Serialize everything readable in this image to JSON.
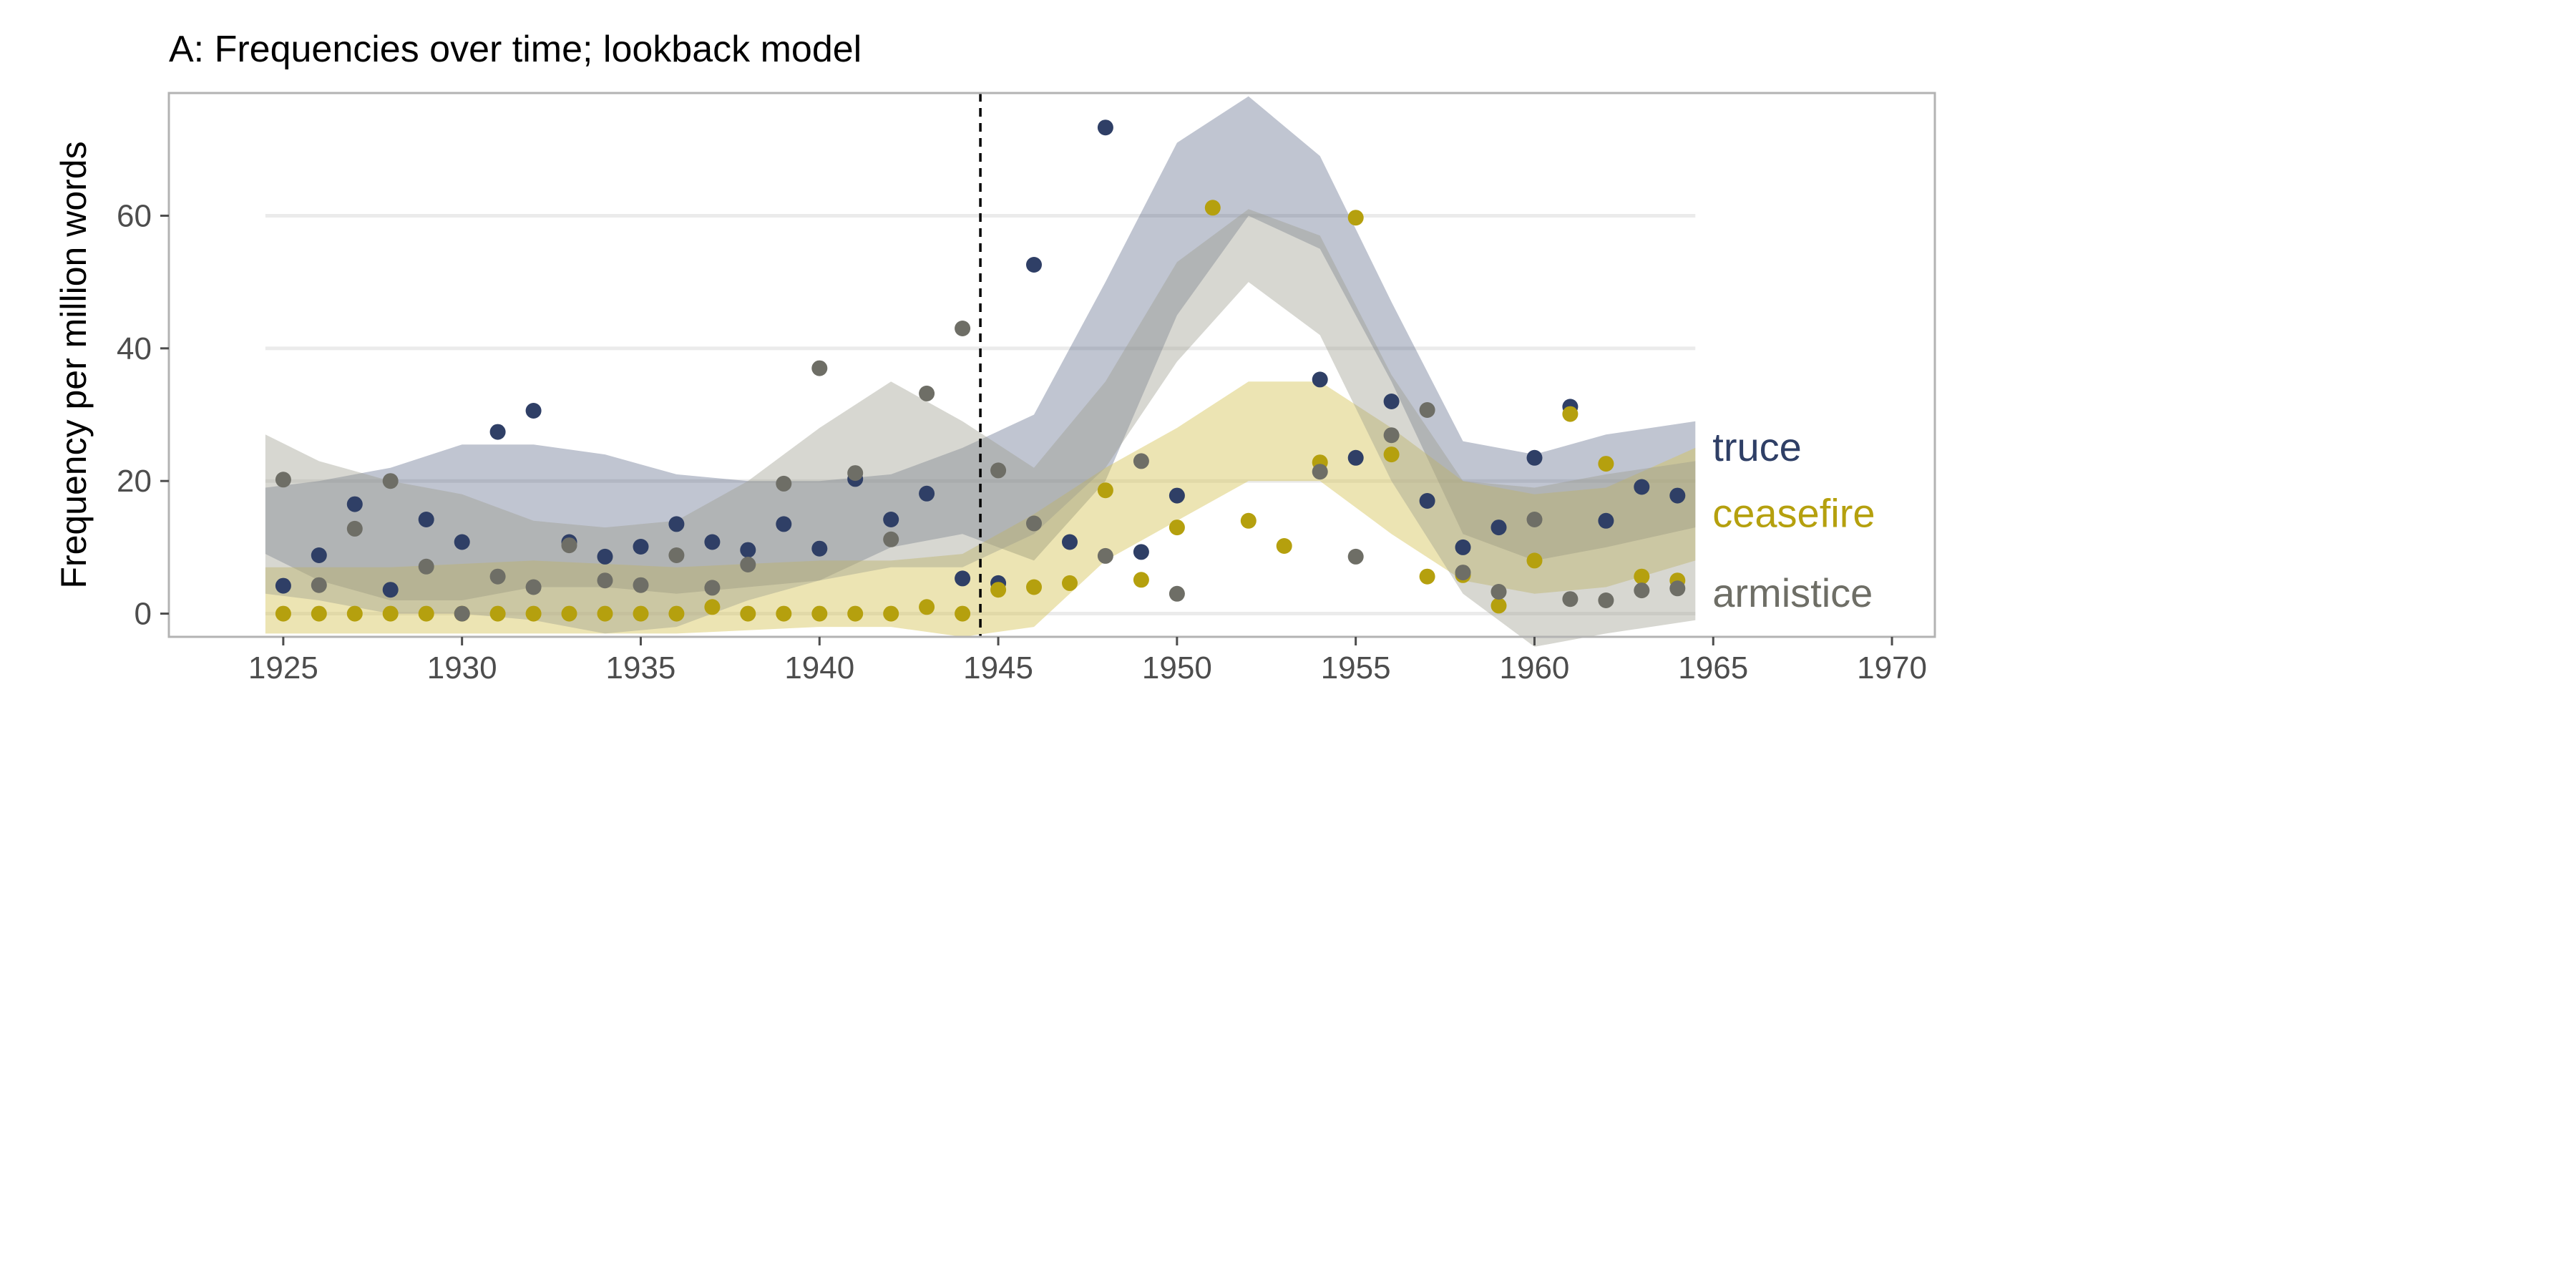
{
  "chart_data": {
    "type": "scatter",
    "title": "A: Frequencies over time; lookback model",
    "xlabel": "",
    "ylabel": "Frequency per million words",
    "xlim": [
      1921.8,
      1971.2
    ],
    "ylim": [
      -3.5,
      78.5
    ],
    "xticks": [
      1925,
      1930,
      1935,
      1940,
      1945,
      1950,
      1955,
      1960,
      1965,
      1970
    ],
    "yticks": [
      0,
      20,
      40,
      60
    ],
    "grid": true,
    "legend": "direct labels at right end of series",
    "cutoff_line_x": 1944.5,
    "series": [
      {
        "name": "truce",
        "color": "#2f3f66",
        "points": [
          [
            1925,
            4.2
          ],
          [
            1926,
            8.8
          ],
          [
            1927,
            16.5
          ],
          [
            1928,
            3.6
          ],
          [
            1929,
            14.2
          ],
          [
            1930,
            10.8
          ],
          [
            1931,
            27.4
          ],
          [
            1932,
            30.6
          ],
          [
            1933,
            10.8
          ],
          [
            1934,
            8.6
          ],
          [
            1935,
            10.1
          ],
          [
            1936,
            13.5
          ],
          [
            1937,
            10.8
          ],
          [
            1938,
            9.6
          ],
          [
            1939,
            13.5
          ],
          [
            1940,
            9.8
          ],
          [
            1941,
            20.3
          ],
          [
            1942,
            14.2
          ],
          [
            1943,
            18.1
          ],
          [
            1944,
            5.3
          ],
          [
            1945,
            4.6
          ],
          [
            1946,
            52.6
          ],
          [
            1947,
            10.8
          ],
          [
            1948,
            73.3
          ],
          [
            1949,
            9.3
          ],
          [
            1950,
            17.8
          ],
          [
            1954,
            35.3
          ],
          [
            1955,
            23.5
          ],
          [
            1956,
            32.0
          ],
          [
            1957,
            17.0
          ],
          [
            1958,
            10.0
          ],
          [
            1959,
            13.0
          ],
          [
            1960,
            23.5
          ],
          [
            1961,
            31.2
          ],
          [
            1962,
            14.0
          ],
          [
            1963,
            19.1
          ],
          [
            1964,
            17.8
          ]
        ],
        "band_x": [
          1924.5,
          1926,
          1928,
          1930,
          1932,
          1934,
          1936,
          1938,
          1940,
          1942,
          1944,
          1946,
          1948,
          1950,
          1952,
          1954,
          1956,
          1958,
          1960,
          1962,
          1964.5
        ],
        "band_low": [
          9,
          5,
          2,
          2,
          4,
          4,
          3,
          4,
          5,
          10,
          12,
          8,
          20,
          45,
          60,
          55,
          35,
          12,
          8,
          10,
          13
        ],
        "band_high": [
          19,
          20,
          22,
          25.5,
          25.5,
          24,
          21,
          20,
          20,
          21,
          25,
          30,
          50,
          71,
          78,
          69,
          47,
          26,
          24,
          27,
          29
        ]
      },
      {
        "name": "ceasefire",
        "color": "#b5a00e",
        "points": [
          [
            1925,
            0
          ],
          [
            1926,
            0
          ],
          [
            1927,
            0
          ],
          [
            1928,
            0
          ],
          [
            1929,
            0
          ],
          [
            1930,
            0
          ],
          [
            1931,
            0
          ],
          [
            1932,
            0
          ],
          [
            1933,
            0
          ],
          [
            1934,
            0
          ],
          [
            1935,
            0
          ],
          [
            1936,
            0
          ],
          [
            1937,
            1.0
          ],
          [
            1938,
            0
          ],
          [
            1939,
            0
          ],
          [
            1940,
            0
          ],
          [
            1941,
            0
          ],
          [
            1942,
            0
          ],
          [
            1943,
            1.0
          ],
          [
            1944,
            0
          ],
          [
            1945,
            3.6
          ],
          [
            1946,
            4.0
          ],
          [
            1947,
            4.6
          ],
          [
            1948,
            18.6
          ],
          [
            1949,
            5.1
          ],
          [
            1950,
            13.0
          ],
          [
            1951,
            61.2
          ],
          [
            1952,
            14.0
          ],
          [
            1953,
            10.2
          ],
          [
            1954,
            22.8
          ],
          [
            1955,
            59.7
          ],
          [
            1956,
            24.0
          ],
          [
            1957,
            5.6
          ],
          [
            1958,
            5.8
          ],
          [
            1959,
            1.2
          ],
          [
            1960,
            8.0
          ],
          [
            1961,
            30.1
          ],
          [
            1962,
            22.6
          ],
          [
            1963,
            5.6
          ],
          [
            1964,
            5.0
          ]
        ],
        "band_x": [
          1924.5,
          1928,
          1932,
          1936,
          1940,
          1942,
          1944,
          1946,
          1948,
          1950,
          1952,
          1954,
          1956,
          1958,
          1960,
          1962,
          1964.5
        ],
        "band_low": [
          -3,
          -3,
          -3,
          -3,
          -2,
          -2,
          -3.5,
          -2,
          8,
          14,
          20,
          20,
          12,
          5,
          3,
          4,
          8
        ],
        "band_high": [
          7,
          7,
          8,
          7,
          8,
          8,
          9,
          15,
          22,
          28,
          35,
          35,
          28,
          20,
          18,
          19,
          25
        ]
      },
      {
        "name": "armistice",
        "color": "#6e6e66",
        "points": [
          [
            1925,
            20.2
          ],
          [
            1926,
            4.3
          ],
          [
            1927,
            12.8
          ],
          [
            1928,
            20.0
          ],
          [
            1929,
            7.1
          ],
          [
            1930,
            0
          ],
          [
            1931,
            5.6
          ],
          [
            1932,
            4.0
          ],
          [
            1933,
            10.3
          ],
          [
            1934,
            5.0
          ],
          [
            1935,
            4.3
          ],
          [
            1936,
            8.8
          ],
          [
            1937,
            3.9
          ],
          [
            1938,
            7.4
          ],
          [
            1939,
            19.6
          ],
          [
            1940,
            37.0
          ],
          [
            1941,
            21.2
          ],
          [
            1942,
            11.2
          ],
          [
            1943,
            33.2
          ],
          [
            1944,
            43.0
          ],
          [
            1945,
            21.6
          ],
          [
            1946,
            13.6
          ],
          [
            1948,
            8.7
          ],
          [
            1949,
            23.0
          ],
          [
            1950,
            3.0
          ],
          [
            1954,
            21.4
          ],
          [
            1955,
            8.6
          ],
          [
            1956,
            26.9
          ],
          [
            1957,
            30.7
          ],
          [
            1958,
            6.2
          ],
          [
            1959,
            3.3
          ],
          [
            1960,
            14.2
          ],
          [
            1961,
            2.2
          ],
          [
            1962,
            2.0
          ],
          [
            1963,
            3.5
          ],
          [
            1964,
            3.8
          ]
        ],
        "band_x": [
          1924.5,
          1926,
          1928,
          1930,
          1932,
          1934,
          1936,
          1938,
          1940,
          1942,
          1944,
          1946,
          1948,
          1950,
          1952,
          1954,
          1956,
          1958,
          1960,
          1962,
          1964.5
        ],
        "band_low": [
          3,
          2,
          0,
          0,
          -1,
          -3,
          -2,
          2,
          5,
          7,
          7,
          12,
          22,
          38,
          50,
          42,
          20,
          3,
          -5,
          -3,
          -1
        ],
        "band_high": [
          27,
          23,
          20,
          18,
          14,
          13,
          14,
          20,
          28,
          35,
          29,
          22,
          35,
          53,
          61,
          57,
          36,
          20,
          19,
          21,
          23
        ]
      }
    ]
  }
}
